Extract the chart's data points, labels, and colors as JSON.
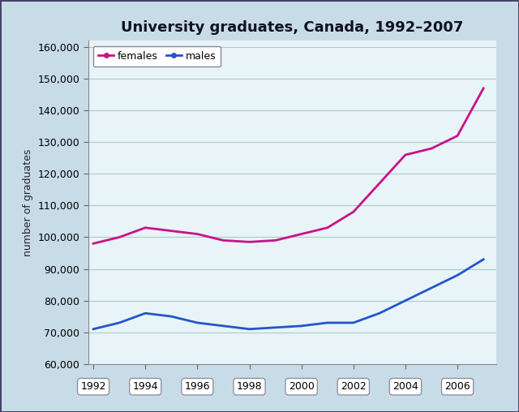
{
  "title": "University graduates, Canada, 1992–2007",
  "ylabel": "number of graduates",
  "years": [
    1992,
    1993,
    1994,
    1995,
    1996,
    1997,
    1998,
    1999,
    2000,
    2001,
    2002,
    2003,
    2004,
    2005,
    2006,
    2007
  ],
  "females": [
    98000,
    100000,
    103000,
    102000,
    101000,
    99000,
    98500,
    99000,
    101000,
    103000,
    108000,
    117000,
    126000,
    128000,
    132000,
    147000
  ],
  "males": [
    71000,
    73000,
    76000,
    75000,
    73000,
    72000,
    71000,
    71500,
    72000,
    73000,
    73000,
    76000,
    80000,
    84000,
    88000,
    93000
  ],
  "female_color": "#cc1188",
  "male_color": "#2255cc",
  "ylim": [
    60000,
    162000
  ],
  "ytick_step": 10000,
  "xtick_years": [
    1992,
    1994,
    1996,
    1998,
    2000,
    2002,
    2004,
    2006
  ],
  "plot_bg_color": "#e8f4f8",
  "fig_bg_color": "#c8dce8",
  "grid_color": "#aacccc",
  "border_color": "#444466",
  "line_width": 2.0,
  "title_fontsize": 13,
  "axis_fontsize": 9,
  "tick_fontsize": 9,
  "legend_fontsize": 9
}
